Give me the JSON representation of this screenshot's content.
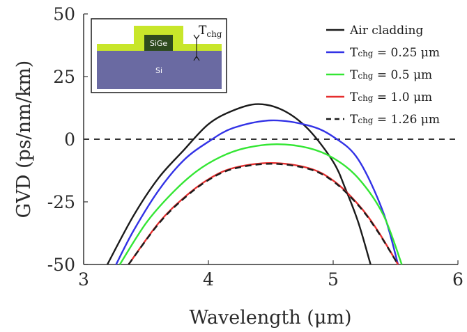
{
  "chart_data": {
    "type": "line",
    "xlabel": "Wavelength (μm)",
    "ylabel": "GVD (ps/nm/km)",
    "xlim": [
      3,
      6
    ],
    "ylim": [
      -50,
      50
    ],
    "xticks": [
      "3",
      "4",
      "5",
      "6"
    ],
    "yticks": [
      "50",
      "25",
      "0",
      "-25",
      "-50"
    ],
    "grid": false,
    "legend_position": "top-right",
    "zero_line": {
      "y": 0,
      "style": "dashed",
      "color": "#333333"
    },
    "series": [
      {
        "name": "Air cladding",
        "legend_main": "Air cladding",
        "legend_sub": "",
        "legend_rest": "",
        "color": "#1a1a1a",
        "dash": "solid",
        "x": [
          3.19,
          3.4,
          3.6,
          3.8,
          4.0,
          4.2,
          4.4,
          4.6,
          4.8,
          5.0,
          5.1,
          5.2,
          5.3
        ],
        "y": [
          -50,
          -30.5,
          -15.5,
          -4.5,
          6.0,
          11.5,
          14.0,
          11.5,
          4.0,
          -9.0,
          -20.0,
          -33.0,
          -50
        ]
      },
      {
        "name": "Tchg = 0.25 μm",
        "legend_main": "T",
        "legend_sub": "chg",
        "legend_rest": " = 0.25 μm",
        "color": "#3232e6",
        "dash": "solid",
        "x": [
          3.26,
          3.4,
          3.6,
          3.8,
          4.0,
          4.2,
          4.5,
          4.8,
          5.0,
          5.2,
          5.4,
          5.52
        ],
        "y": [
          -50,
          -36.5,
          -20.5,
          -8.5,
          -1.0,
          4.5,
          7.5,
          5.5,
          1.0,
          -8.0,
          -29.0,
          -50
        ]
      },
      {
        "name": "Tchg = 0.5 μm",
        "legend_main": "T",
        "legend_sub": "chg",
        "legend_rest": " = 0.5 μm",
        "color": "#33e633",
        "dash": "solid",
        "x": [
          3.29,
          3.5,
          3.7,
          3.9,
          4.1,
          4.3,
          4.55,
          4.8,
          5.0,
          5.2,
          5.4,
          5.55
        ],
        "y": [
          -50,
          -33.5,
          -22.0,
          -13.0,
          -7.0,
          -3.5,
          -2.0,
          -3.5,
          -7.5,
          -15.5,
          -30.0,
          -50
        ]
      },
      {
        "name": "Tchg = 1.0 μm",
        "legend_main": "T",
        "legend_sub": "chg",
        "legend_rest": " = 1.0 μm",
        "color": "#e62e2e",
        "dash": "solid",
        "x": [
          3.36,
          3.6,
          3.8,
          4.0,
          4.2,
          4.5,
          4.8,
          5.0,
          5.2,
          5.35,
          5.52
        ],
        "y": [
          -50,
          -33.5,
          -23.5,
          -16.0,
          -11.5,
          -9.5,
          -11.5,
          -16.5,
          -26.0,
          -36.0,
          -50
        ]
      },
      {
        "name": "Tchg = 1.26 μm",
        "legend_main": "T",
        "legend_sub": "chg",
        "legend_rest": " = 1.26 μm",
        "color": "#1a1a1a",
        "dash": "dashed",
        "x": [
          3.36,
          3.6,
          3.8,
          4.0,
          4.2,
          4.5,
          4.8,
          5.0,
          5.2,
          5.35,
          5.52
        ],
        "y": [
          -50,
          -33.8,
          -23.8,
          -16.3,
          -11.8,
          -9.8,
          -11.8,
          -16.8,
          -26.3,
          -36.3,
          -50
        ]
      }
    ]
  },
  "inset": {
    "sige_label": "SiGe",
    "si_label": "Si",
    "thickness_label_main": "T",
    "thickness_label_sub": "chg",
    "colors": {
      "substrate": "#6a6aa2",
      "cladding": "#c8e62a",
      "core": "#2e4a1e",
      "frame": "#1a1a1a"
    }
  }
}
